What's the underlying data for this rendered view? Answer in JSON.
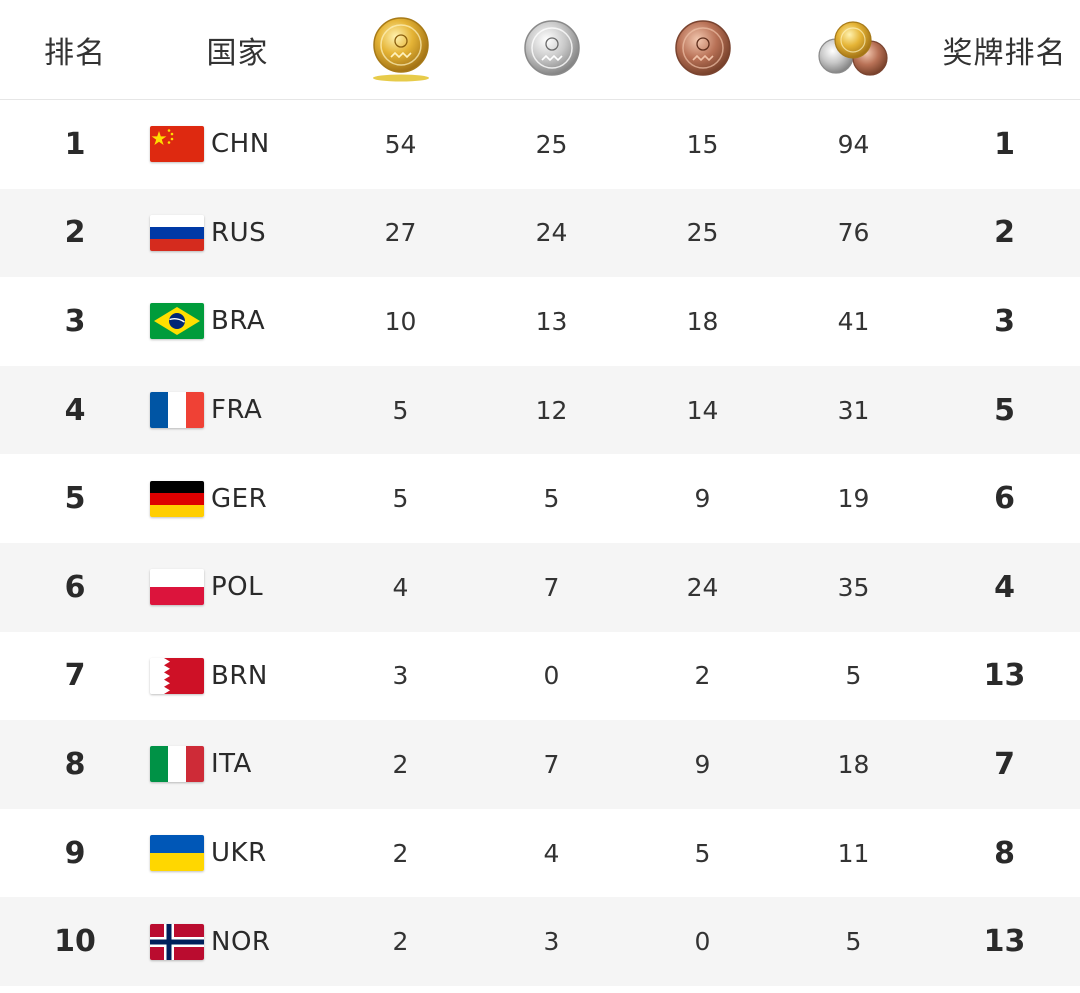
{
  "header": {
    "rank_label": "排名",
    "country_label": "国家",
    "gold_icon": "gold-medal-icon",
    "silver_icon": "silver-medal-icon",
    "bronze_icon": "bronze-medal-icon",
    "total_icon": "medal-stack-icon",
    "medal_rank_label": "奖牌排名"
  },
  "colors": {
    "gold": "#d4a22a",
    "silver": "#c9c9c9",
    "bronze": "#a8674a",
    "alt_row": "#f5f5f5"
  },
  "rows": [
    {
      "rank": "1",
      "code": "CHN",
      "flag": "china-flag-icon",
      "gold": "54",
      "silver": "25",
      "bronze": "15",
      "total": "94",
      "medal_rank": "1"
    },
    {
      "rank": "2",
      "code": "RUS",
      "flag": "russia-flag-icon",
      "gold": "27",
      "silver": "24",
      "bronze": "25",
      "total": "76",
      "medal_rank": "2"
    },
    {
      "rank": "3",
      "code": "BRA",
      "flag": "brazil-flag-icon",
      "gold": "10",
      "silver": "13",
      "bronze": "18",
      "total": "41",
      "medal_rank": "3"
    },
    {
      "rank": "4",
      "code": "FRA",
      "flag": "france-flag-icon",
      "gold": "5",
      "silver": "12",
      "bronze": "14",
      "total": "31",
      "medal_rank": "5"
    },
    {
      "rank": "5",
      "code": "GER",
      "flag": "germany-flag-icon",
      "gold": "5",
      "silver": "5",
      "bronze": "9",
      "total": "19",
      "medal_rank": "6"
    },
    {
      "rank": "6",
      "code": "POL",
      "flag": "poland-flag-icon",
      "gold": "4",
      "silver": "7",
      "bronze": "24",
      "total": "35",
      "medal_rank": "4"
    },
    {
      "rank": "7",
      "code": "BRN",
      "flag": "bahrain-flag-icon",
      "gold": "3",
      "silver": "0",
      "bronze": "2",
      "total": "5",
      "medal_rank": "13"
    },
    {
      "rank": "8",
      "code": "ITA",
      "flag": "italy-flag-icon",
      "gold": "2",
      "silver": "7",
      "bronze": "9",
      "total": "18",
      "medal_rank": "7"
    },
    {
      "rank": "9",
      "code": "UKR",
      "flag": "ukraine-flag-icon",
      "gold": "2",
      "silver": "4",
      "bronze": "5",
      "total": "11",
      "medal_rank": "8"
    },
    {
      "rank": "10",
      "code": "NOR",
      "flag": "norway-flag-icon",
      "gold": "2",
      "silver": "3",
      "bronze": "0",
      "total": "5",
      "medal_rank": "13"
    }
  ]
}
